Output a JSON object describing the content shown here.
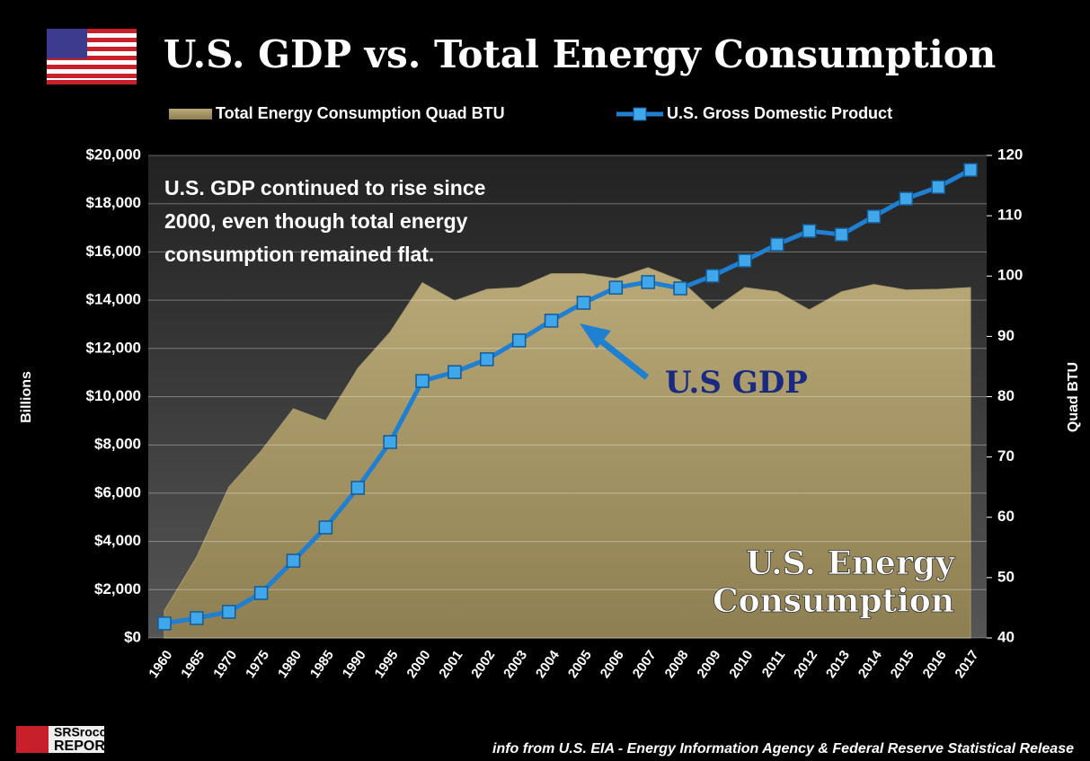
{
  "chart_data": {
    "type": "area-line",
    "title": "U.S. GDP vs. Total Energy Consumption",
    "ylabel": "Billions",
    "y2label": "Quad BTU",
    "annotations": {
      "note": [
        "U.S. GDP continued to rise since",
        "2000, even though total energy",
        "consumption remained flat."
      ],
      "gdp": "U.S GDP",
      "energy": [
        "U.S. Energy",
        "Consumption"
      ]
    },
    "source": "info from U.S. EIA - Energy Information Agency & Federal Reserve Statistical Release",
    "logo": [
      "SRSrocco",
      "REPORT"
    ],
    "categories": [
      "1960",
      "1965",
      "1970",
      "1975",
      "1980",
      "1985",
      "1990",
      "1995",
      "2000",
      "2001",
      "2002",
      "2003",
      "2004",
      "2005",
      "2006",
      "2007",
      "2008",
      "2009",
      "2010",
      "2011",
      "2012",
      "2013",
      "2014",
      "2015",
      "2016",
      "2017"
    ],
    "series": [
      {
        "name": "Total Energy Consumption Quad BTU",
        "color": "#a8996a",
        "axis": "y2",
        "kind": "area",
        "values": [
          44.5,
          53.4,
          65,
          71,
          78,
          76,
          84.7,
          90.7,
          98.9,
          95.9,
          97.8,
          98.1,
          100.4,
          100.4,
          99.6,
          101.4,
          99.3,
          94.4,
          98.1,
          97.4,
          94.4,
          97.4,
          98.6,
          97.7,
          97.8,
          98.1
        ]
      },
      {
        "name": "U.S. Gross Domestic Product",
        "color": "#1f7fd0",
        "kind": "line",
        "values": [
          600,
          820,
          1080,
          1860,
          3200,
          4580,
          6220,
          8120,
          10650,
          11020,
          11550,
          12330,
          13150,
          13890,
          14520,
          14750,
          14490,
          15010,
          15640,
          16310,
          16870,
          16720,
          17470,
          18210,
          18690,
          19400
        ]
      }
    ],
    "ylim": [
      0,
      20000
    ],
    "yticks": [
      {
        "value": 0,
        "label": "$0"
      },
      {
        "value": 2000,
        "label": "$2,000"
      },
      {
        "value": 4000,
        "label": "$4,000"
      },
      {
        "value": 6000,
        "label": "$6,000"
      },
      {
        "value": 8000,
        "label": "$8,000"
      },
      {
        "value": 10000,
        "label": "$10,000"
      },
      {
        "value": 12000,
        "label": "$12,000"
      },
      {
        "value": 14000,
        "label": "$14,000"
      },
      {
        "value": 16000,
        "label": "$16,000"
      },
      {
        "value": 18000,
        "label": "$18,000"
      },
      {
        "value": 20000,
        "label": "$20,000"
      }
    ],
    "y2lim": [
      40,
      120
    ],
    "y2ticks": [
      40,
      50,
      60,
      70,
      80,
      90,
      100,
      110,
      120
    ],
    "grid": true
  }
}
